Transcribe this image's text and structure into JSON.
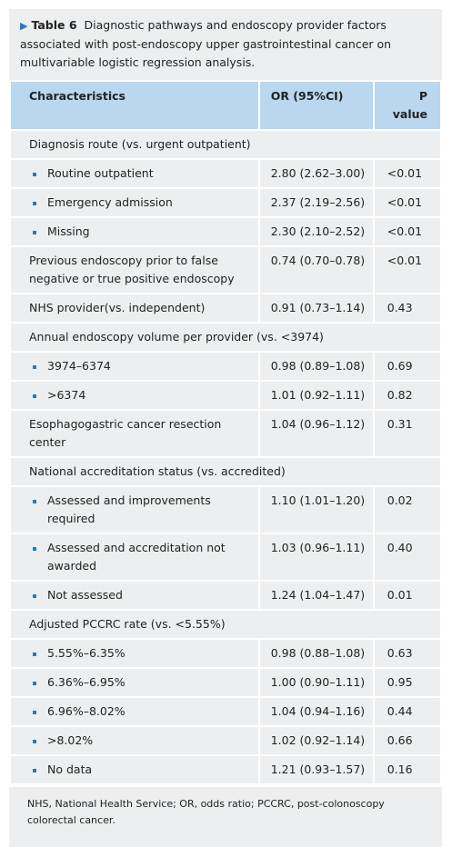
{
  "caption": {
    "label": "Table 6",
    "text": "Diagnostic pathways and endoscopy provider factors associated with post-endoscopy upper gastrointestinal cancer on multivariable logistic regression analysis."
  },
  "table": {
    "header": [
      "Characteristics",
      "OR (95%CI)",
      "P value"
    ],
    "rows": [
      {
        "heading": "Diagnosis route (vs. urgent outpatient)",
        "items": [
          [
            "Routine outpatient",
            "2.80 (2.62–3.00)",
            "<0.01"
          ],
          [
            "Emergency admission",
            "2.37 (2.19–2.56)",
            "<0.01"
          ],
          [
            "Missing",
            "2.30 (2.10–2.52)",
            "<0.01"
          ]
        ]
      },
      [
        "Previous endoscopy prior to false negative or true positive endoscopy",
        "0.74 (0.70–0.78)",
        "<0.01"
      ],
      [
        "NHS provider(vs. independent)",
        "0.91 (0.73–1.14)",
        "0.43"
      ],
      {
        "heading": "Annual endoscopy volume per provider (vs. <3974)",
        "items": [
          [
            "3974–6374",
            "0.98 (0.89–1.08)",
            "0.69"
          ],
          [
            ">6374",
            "1.01 (0.92–1.11)",
            "0.82"
          ]
        ]
      },
      [
        "Esophagogastric cancer resection center",
        "1.04 (0.96–1.12)",
        "0.31"
      ],
      {
        "heading": "National accreditation status (vs. accredited)",
        "items": [
          [
            "Assessed and improvements required",
            "1.10 (1.01–1.20)",
            "0.02"
          ],
          [
            "Assessed and accreditation not awarded",
            "1.03 (0.96–1.11)",
            "0.40"
          ],
          [
            "Not assessed",
            "1.24 (1.04–1.47)",
            "0.01"
          ]
        ]
      },
      {
        "heading": "Adjusted PCCRC rate (vs. <5.55%)",
        "items": [
          [
            "5.55%–6.35%",
            "0.98 (0.88–1.08)",
            "0.63"
          ],
          [
            "6.36%–6.95%",
            "1.00 (0.90–1.11)",
            "0.95"
          ],
          [
            "6.96%–8.02%",
            "1.04 (0.94–1.16)",
            "0.44"
          ],
          [
            ">8.02%",
            "1.02 (0.92–1.14)",
            "0.66"
          ],
          [
            "No data",
            "1.21 (0.93–1.57)",
            "0.16"
          ]
        ]
      }
    ]
  },
  "footnote": "NHS, National Health Service; OR, odds ratio; PCCRC, post-colonoscopy colorectal cancer."
}
